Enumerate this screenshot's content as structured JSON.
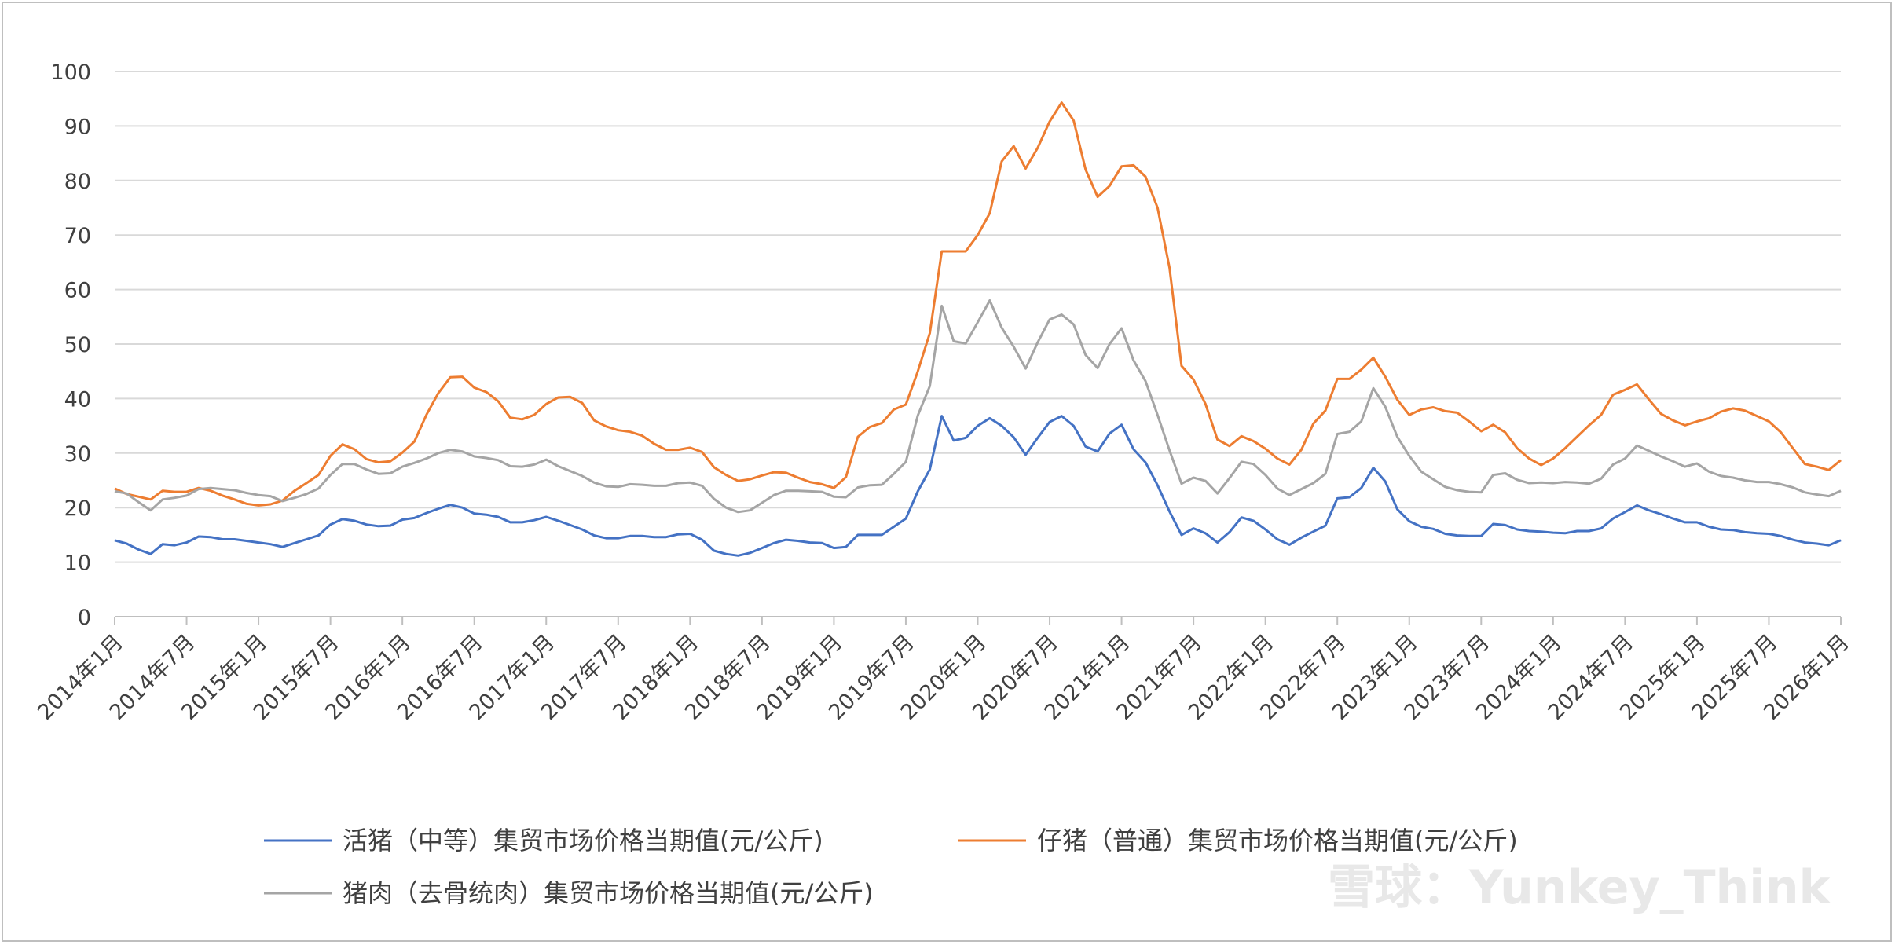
{
  "chart_data": {
    "type": "line",
    "title": "",
    "xlabel": "",
    "ylabel": "",
    "ylim": [
      0,
      100
    ],
    "yticks": [
      0,
      10,
      20,
      30,
      40,
      50,
      60,
      70,
      80,
      90,
      100
    ],
    "grid": true,
    "legend_position": "bottom",
    "xtick_labels": [
      "2014年1月",
      "2014年7月",
      "2015年1月",
      "2015年7月",
      "2016年1月",
      "2016年7月",
      "2017年1月",
      "2017年7月",
      "2018年1月",
      "2018年7月",
      "2019年1月",
      "2019年7月",
      "2020年1月",
      "2020年7月",
      "2021年1月",
      "2021年7月",
      "2022年1月",
      "2022年7月",
      "2023年1月",
      "2023年7月",
      "2024年1月",
      "2024年7月",
      "2025年1月",
      "2025年7月",
      "2026年1月"
    ],
    "x_start": "2014-01",
    "x_end": "2026-01",
    "series": [
      {
        "name": "活猪（中等）集贸市场价格当期值(元/公斤)",
        "color": "#4472c4",
        "values": [
          14.0,
          13.4,
          12.3,
          11.5,
          13.3,
          13.1,
          13.6,
          14.7,
          14.6,
          14.2,
          14.2,
          13.9,
          13.6,
          13.3,
          12.8,
          13.5,
          14.2,
          14.9,
          16.9,
          17.9,
          17.6,
          16.9,
          16.6,
          16.7,
          17.8,
          18.1,
          19.0,
          19.8,
          20.5,
          20.0,
          18.9,
          18.7,
          18.3,
          17.3,
          17.3,
          17.7,
          18.3,
          17.6,
          16.8,
          16.0,
          14.9,
          14.4,
          14.4,
          14.8,
          14.8,
          14.6,
          14.6,
          15.1,
          15.2,
          14.1,
          12.1,
          11.5,
          11.2,
          11.7,
          12.6,
          13.5,
          14.1,
          13.9,
          13.6,
          13.5,
          12.6,
          12.8,
          15.0,
          15.0,
          15.0,
          16.5,
          18.0,
          23.0,
          27.0,
          36.8,
          32.3,
          32.8,
          35.0,
          36.4,
          35.0,
          32.9,
          29.7,
          32.8,
          35.7,
          36.8,
          35.0,
          31.2,
          30.3,
          33.6,
          35.2,
          30.7,
          28.3,
          24.1,
          19.3,
          15.0,
          16.2,
          15.3,
          13.6,
          15.5,
          18.2,
          17.6,
          16.0,
          14.2,
          13.2,
          14.5,
          15.6,
          16.7,
          21.7,
          21.9,
          23.6,
          27.3,
          24.8,
          19.7,
          17.5,
          16.5,
          16.1,
          15.2,
          14.9,
          14.8,
          14.8,
          17.0,
          16.8,
          16.0,
          15.7,
          15.6,
          15.4,
          15.3,
          15.7,
          15.7,
          16.2,
          18.0,
          19.2,
          20.4,
          19.5,
          18.8,
          18.0,
          17.3,
          17.3,
          16.5,
          16.0,
          15.9,
          15.5,
          15.3,
          15.2,
          14.8,
          14.1,
          13.6,
          13.4,
          13.1,
          14.0
        ]
      },
      {
        "name": "仔猪（普通）集贸市场价格当期值(元/公斤)",
        "color": "#ed7d31",
        "values": [
          23.5,
          22.5,
          22.0,
          21.5,
          23.1,
          22.9,
          22.9,
          23.6,
          23.1,
          22.2,
          21.5,
          20.7,
          20.4,
          20.6,
          21.3,
          23.1,
          24.5,
          26.0,
          29.5,
          31.6,
          30.7,
          28.9,
          28.3,
          28.5,
          30.1,
          32.1,
          37.0,
          41.0,
          43.9,
          44.0,
          42.0,
          41.2,
          39.5,
          36.5,
          36.2,
          37.0,
          39.0,
          40.2,
          40.3,
          39.2,
          36.0,
          34.9,
          34.2,
          33.9,
          33.2,
          31.7,
          30.6,
          30.6,
          31.0,
          30.2,
          27.4,
          26.0,
          24.9,
          25.2,
          25.9,
          26.5,
          26.4,
          25.5,
          24.7,
          24.3,
          23.6,
          25.6,
          33.0,
          34.8,
          35.5,
          38.0,
          38.9,
          45.0,
          52.0,
          67.0,
          67.0,
          67.0,
          70.0,
          74.0,
          83.5,
          86.3,
          82.2,
          86.0,
          90.8,
          94.3,
          91.0,
          82.0,
          77.0,
          79.0,
          82.6,
          82.8,
          80.7,
          75.0,
          64.0,
          46.0,
          43.5,
          39.0,
          32.5,
          31.3,
          33.1,
          32.2,
          30.8,
          29.0,
          27.9,
          30.6,
          35.4,
          37.8,
          43.6,
          43.6,
          45.3,
          47.5,
          44.0,
          39.8,
          37.0,
          38.0,
          38.4,
          37.7,
          37.4,
          35.8,
          34.0,
          35.2,
          33.8,
          30.9,
          29.0,
          27.8,
          29.0,
          30.9,
          33.0,
          35.1,
          37.0,
          40.7,
          41.6,
          42.6,
          39.8,
          37.2,
          36.0,
          35.1,
          35.8,
          36.4,
          37.6,
          38.2,
          37.8,
          36.8,
          35.8,
          33.8,
          30.9,
          28.0,
          27.5,
          26.9,
          28.7
        ]
      },
      {
        "name": "猪肉（去骨统肉）集贸市场价格当期值(元/公斤)",
        "color": "#a5a5a5",
        "values": [
          23.0,
          22.6,
          21.0,
          19.5,
          21.5,
          21.8,
          22.2,
          23.4,
          23.6,
          23.4,
          23.2,
          22.7,
          22.3,
          22.1,
          21.2,
          21.8,
          22.5,
          23.5,
          26.0,
          28.0,
          28.0,
          27.0,
          26.2,
          26.3,
          27.5,
          28.2,
          29.0,
          30.0,
          30.6,
          30.3,
          29.4,
          29.1,
          28.7,
          27.6,
          27.5,
          27.9,
          28.8,
          27.6,
          26.7,
          25.8,
          24.6,
          23.9,
          23.8,
          24.3,
          24.2,
          24.0,
          24.0,
          24.5,
          24.6,
          24.0,
          21.6,
          20.0,
          19.2,
          19.5,
          20.9,
          22.3,
          23.1,
          23.1,
          23.0,
          22.9,
          22.0,
          21.9,
          23.7,
          24.1,
          24.2,
          26.2,
          28.4,
          36.9,
          42.3,
          57.0,
          50.5,
          50.1,
          54.0,
          58.0,
          53.0,
          49.5,
          45.5,
          50.3,
          54.5,
          55.4,
          53.6,
          48.0,
          45.6,
          50.0,
          52.9,
          47.0,
          43.2,
          37.0,
          30.5,
          24.4,
          25.5,
          24.9,
          22.6,
          25.4,
          28.4,
          28.0,
          26.0,
          23.5,
          22.3,
          23.4,
          24.5,
          26.2,
          33.5,
          33.9,
          35.8,
          41.9,
          38.5,
          33.0,
          29.5,
          26.6,
          25.2,
          23.8,
          23.2,
          22.9,
          22.8,
          26.0,
          26.3,
          25.1,
          24.5,
          24.6,
          24.5,
          24.7,
          24.6,
          24.4,
          25.3,
          27.9,
          29.0,
          31.4,
          30.4,
          29.4,
          28.5,
          27.5,
          28.1,
          26.6,
          25.8,
          25.5,
          25.0,
          24.7,
          24.7,
          24.3,
          23.7,
          22.8,
          22.4,
          22.1,
          23.1
        ]
      }
    ]
  },
  "watermark": "雪球：Yunkey_Think"
}
